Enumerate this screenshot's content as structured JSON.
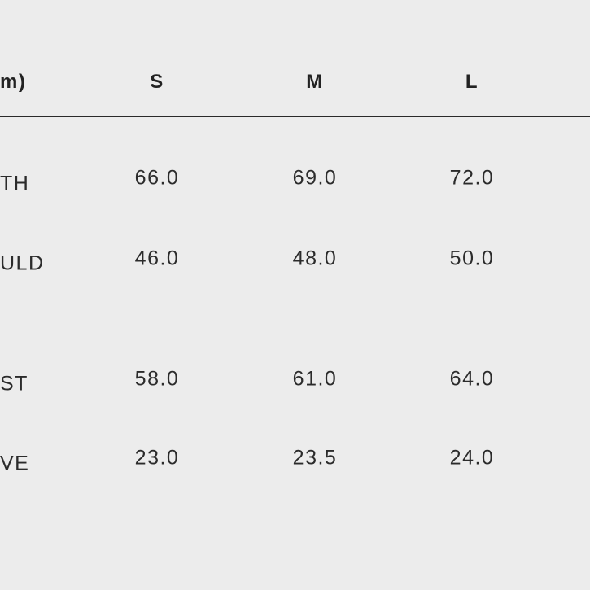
{
  "table": {
    "header": [
      "m)",
      "S",
      "M",
      "L"
    ],
    "rows": [
      [
        "TH",
        "66.0",
        "69.0",
        "72.0"
      ],
      [
        "ULD",
        "46.0",
        "48.0",
        "50.0"
      ],
      [
        "ST",
        "58.0",
        "61.0",
        "64.0"
      ],
      [
        "VE",
        "23.0",
        "23.5",
        "24.0"
      ]
    ]
  }
}
